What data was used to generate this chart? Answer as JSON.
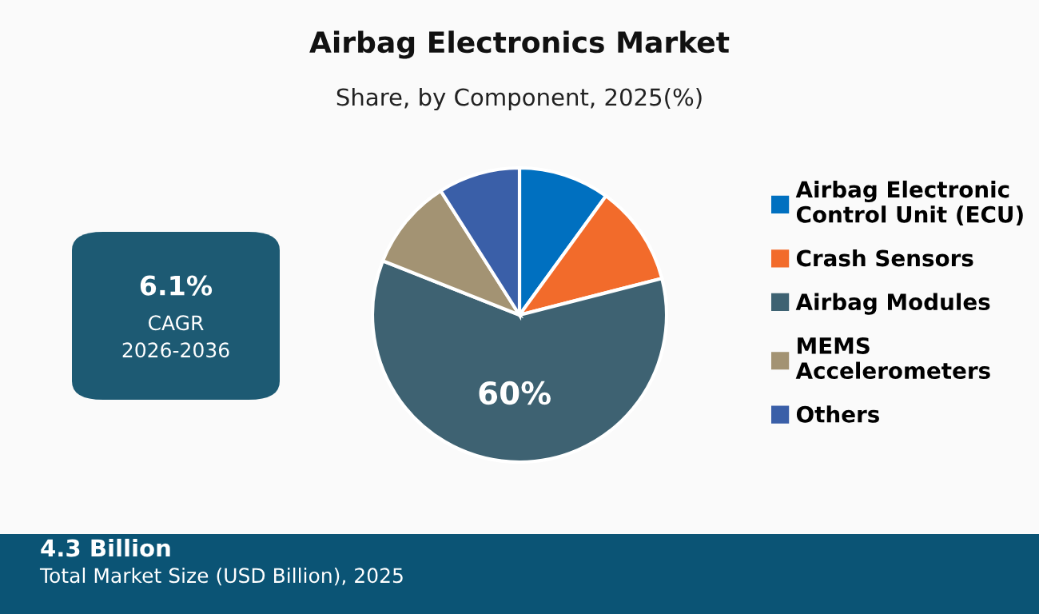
{
  "chart_data": {
    "type": "pie",
    "title": "Airbag Electronics Market",
    "subtitle": "Share, by Component, 2025(%)",
    "categories": [
      "Airbag Electronic Control Unit (ECU)",
      "Crash Sensors",
      "Airbag Modules",
      "MEMS Accelerometers",
      "Others"
    ],
    "values": [
      10,
      11,
      60,
      10,
      9
    ],
    "colors": [
      "#0070c0",
      "#f26b2b",
      "#3e6272",
      "#a39373",
      "#3a5fa8"
    ],
    "value_labels": [
      null,
      null,
      "60%",
      null,
      null
    ],
    "legend": "right",
    "annotations": [
      "6.1%",
      "CAGR",
      "2026-2036",
      "4.3 Billion",
      "Total Market Size (USD Billion), 2025"
    ]
  }
}
